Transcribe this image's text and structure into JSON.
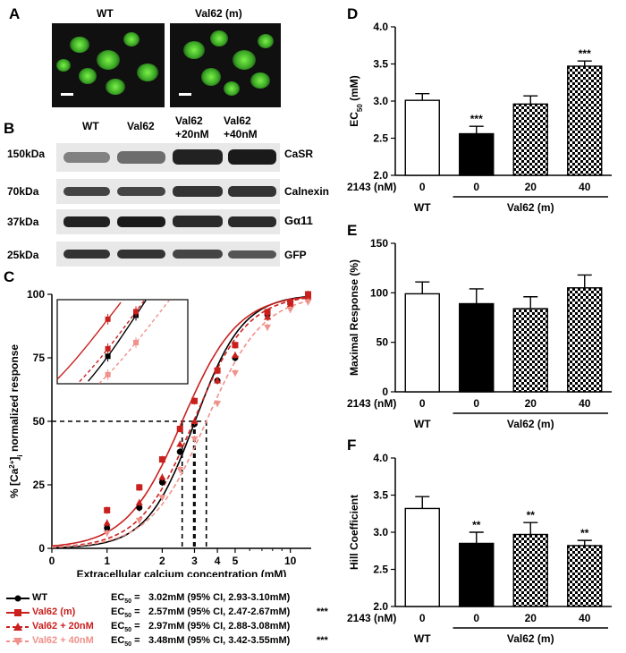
{
  "panels": {
    "A": "A",
    "B": "B",
    "C": "C",
    "D": "D",
    "E": "E",
    "F": "F"
  },
  "panelA": {
    "labels": [
      "WT",
      "Val62 (m)"
    ]
  },
  "panelB": {
    "lanes": [
      "WT",
      "Val62",
      "Val62\n+20nM",
      "Val62\n+40nM"
    ],
    "rows": [
      {
        "size": "150kDa",
        "protein": "CaSR"
      },
      {
        "size": "70kDa",
        "protein": "Calnexin"
      },
      {
        "size": "37kDa",
        "protein": "Gα11"
      },
      {
        "size": "25kDa",
        "protein": "GFP"
      }
    ]
  },
  "chart_data": [
    {
      "panel": "C",
      "type": "line",
      "xlabel": "Extracellular calcium concentration (mM)",
      "ylabel": "% [Ca2+]i normalized response",
      "xscale": "log",
      "xticks": [
        "0",
        "1",
        "2",
        "3",
        "4",
        "5",
        "10"
      ],
      "yticks": [
        0,
        25,
        50,
        75,
        100
      ],
      "ylim": [
        0,
        100
      ],
      "hill_n": [
        3.32,
        2.85,
        2.97,
        2.82
      ],
      "series": [
        {
          "name": "WT",
          "color": "#000000",
          "style": "solid",
          "marker": "circle",
          "ec50_text": "3.02mM (95% CI, 2.93-3.10mM)",
          "stars": "",
          "x": [
            1.0,
            1.5,
            2.0,
            2.5,
            3.0,
            4.0,
            5.0,
            7.5,
            10.0,
            12.5
          ],
          "y": [
            8,
            16,
            26,
            38,
            49,
            66,
            75,
            92,
            97,
            100
          ]
        },
        {
          "name": "Val62 (m)",
          "color": "#c9201e",
          "style": "solid",
          "marker": "square",
          "ec50_text": "2.57mM (95% CI, 2.47-2.67mM)",
          "stars": "***",
          "x": [
            1.0,
            1.5,
            2.0,
            2.5,
            3.0,
            4.0,
            5.0,
            7.5,
            10.0,
            12.5
          ],
          "y": [
            15,
            24,
            35,
            47,
            58,
            70,
            80,
            93,
            97,
            100
          ]
        },
        {
          "name": "Val62 + 20nM",
          "color": "#c9201e",
          "style": "dashed",
          "marker": "triangle",
          "ec50_text": "2.97mM (95% CI, 2.88-3.08mM)",
          "stars": "",
          "x": [
            1.0,
            1.5,
            2.0,
            2.5,
            3.0,
            4.0,
            5.0,
            7.5,
            10.0,
            12.5
          ],
          "y": [
            10,
            18,
            28,
            41,
            50,
            66,
            76,
            91,
            96,
            99
          ]
        },
        {
          "name": "Val62 + 40nM",
          "color": "#f0918b",
          "style": "dashed",
          "marker": "triangle-down",
          "ec50_text": "3.48mM (95% CI, 3.42-3.55mM)",
          "stars": "***",
          "x": [
            1.0,
            1.5,
            2.0,
            2.5,
            3.0,
            4.0,
            5.0,
            7.5,
            10.0,
            12.5
          ],
          "y": [
            6,
            11,
            20,
            31,
            43,
            57,
            69,
            87,
            94,
            97
          ]
        }
      ]
    },
    {
      "panel": "D",
      "type": "bar",
      "ylabel": "EC50 (mM)",
      "ylim": [
        2.0,
        4.0
      ],
      "yticks": [
        "2.0",
        "2.5",
        "3.0",
        "3.5",
        "4.0"
      ],
      "values": [
        3.01,
        2.56,
        2.96,
        3.47
      ],
      "errors": [
        0.09,
        0.1,
        0.11,
        0.07
      ],
      "stars": [
        "",
        "***",
        "",
        "***"
      ]
    },
    {
      "panel": "E",
      "type": "bar",
      "ylabel": "Maximal Response (%)",
      "ylim": [
        0,
        150
      ],
      "yticks": [
        "0",
        "50",
        "100",
        "150"
      ],
      "values": [
        99,
        89,
        84,
        105
      ],
      "errors": [
        12,
        15,
        12,
        13
      ],
      "stars": [
        "",
        "",
        "",
        ""
      ]
    },
    {
      "panel": "F",
      "type": "bar",
      "ylabel": "Hill Coefficient",
      "ylim": [
        2.0,
        4.0
      ],
      "yticks": [
        "2.0",
        "2.5",
        "3.0",
        "3.5",
        "4.0"
      ],
      "values": [
        3.32,
        2.85,
        2.97,
        2.82
      ],
      "errors": [
        0.16,
        0.15,
        0.16,
        0.07
      ],
      "stars": [
        "",
        "**",
        "**",
        "**"
      ]
    }
  ],
  "bar_axis": {
    "row_label": "2143 (nM)",
    "doses": [
      "0",
      "0",
      "20",
      "40"
    ],
    "group_wt": "WT",
    "group_val": "Val62 (m)",
    "fills": [
      "open",
      "black",
      "checker",
      "checker"
    ]
  }
}
